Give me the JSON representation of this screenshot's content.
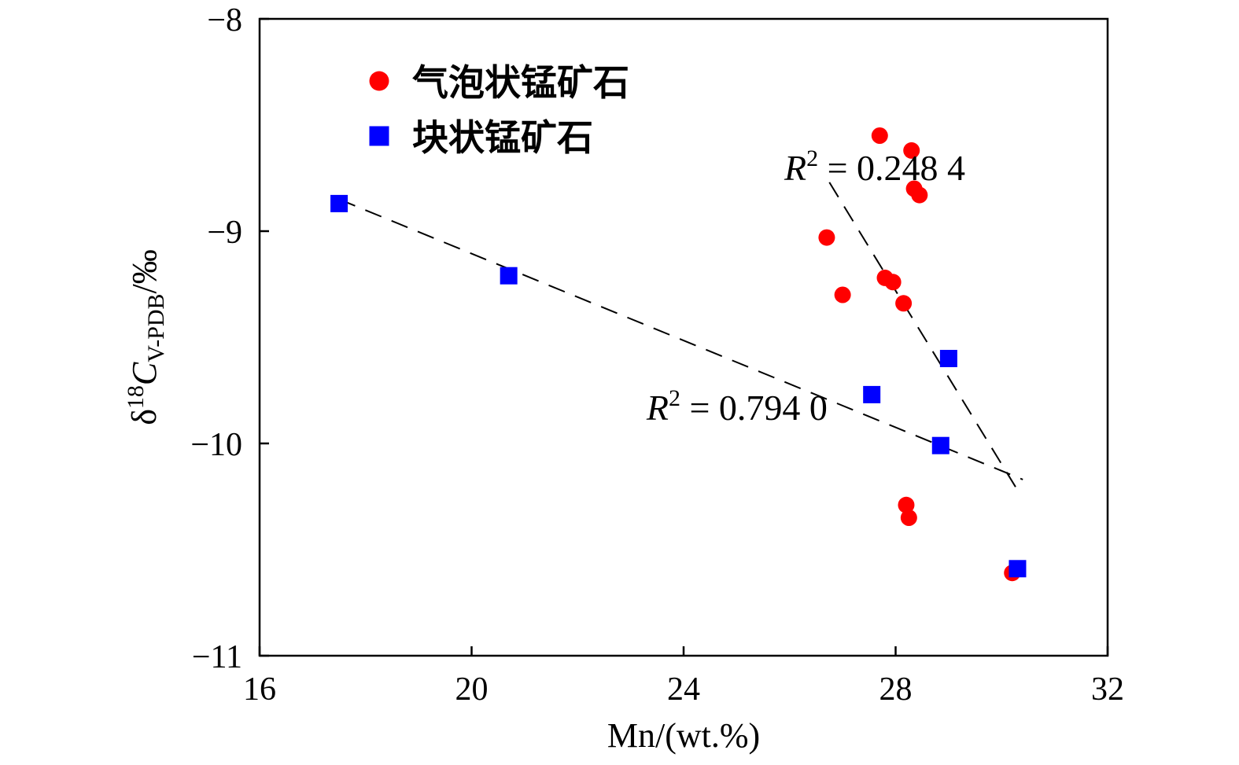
{
  "chart_data": {
    "type": "scatter",
    "title": "",
    "xlabel": "Mn/(wt.%)",
    "ylabel": {
      "prefix": "δ",
      "sup": "18",
      "var": "C",
      "sub": "V-PDB",
      "suffix": "/‰"
    },
    "xlim": [
      16,
      32
    ],
    "ylim": [
      -11,
      -8
    ],
    "xticks": [
      16,
      20,
      24,
      28,
      32
    ],
    "xtick_labels": [
      "16",
      "20",
      "24",
      "28",
      "32"
    ],
    "yticks": [
      -8,
      -9,
      -10,
      -11
    ],
    "ytick_labels": [
      "−8",
      "−9",
      "−10",
      "−11"
    ],
    "grid": false,
    "legend_position": "top-left",
    "series": [
      {
        "name": "气泡状锰矿石",
        "marker": "circle",
        "color": "#ff0000",
        "points": [
          {
            "x": 27.7,
            "y": -8.55
          },
          {
            "x": 28.3,
            "y": -8.62
          },
          {
            "x": 28.35,
            "y": -8.8
          },
          {
            "x": 28.45,
            "y": -8.83
          },
          {
            "x": 26.7,
            "y": -9.03
          },
          {
            "x": 27.8,
            "y": -9.22
          },
          {
            "x": 27.95,
            "y": -9.24
          },
          {
            "x": 27.0,
            "y": -9.3
          },
          {
            "x": 28.15,
            "y": -9.34
          },
          {
            "x": 28.2,
            "y": -10.29
          },
          {
            "x": 28.25,
            "y": -10.35
          },
          {
            "x": 30.2,
            "y": -10.61
          }
        ],
        "trend": {
          "x": [
            26.75,
            30.3
          ],
          "y": [
            -8.77,
            -10.22
          ]
        }
      },
      {
        "name": "块状锰矿石",
        "marker": "square",
        "color": "#0000ff",
        "points": [
          {
            "x": 17.5,
            "y": -8.87
          },
          {
            "x": 20.7,
            "y": -9.21
          },
          {
            "x": 29.0,
            "y": -9.6
          },
          {
            "x": 27.55,
            "y": -9.77
          },
          {
            "x": 28.85,
            "y": -10.01
          },
          {
            "x": 30.3,
            "y": -10.59
          }
        ],
        "trend": {
          "x": [
            17.5,
            30.4
          ],
          "y": [
            -8.85,
            -10.17
          ]
        }
      }
    ],
    "annotations": [
      {
        "var": "R",
        "sup": "2",
        "text": " = 0.248 4",
        "x": 25.9,
        "y": -8.7
      },
      {
        "var": "R",
        "sup": "2",
        "text": " = 0.794 0",
        "x": 23.3,
        "y": -9.83
      }
    ]
  }
}
